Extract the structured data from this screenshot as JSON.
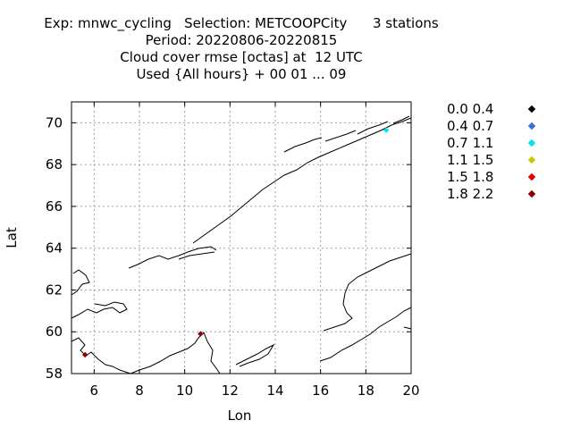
{
  "title": {
    "line1": "Exp: mnwc_cycling   Selection: METCOOPCity      3 stations",
    "line2": "Period: 20220806-20220815",
    "line3": "Cloud cover rmse [octas] at  12 UTC",
    "line4": "Used {All hours} + 00 01 ... 09"
  },
  "axes": {
    "xlabel": "Lon",
    "ylabel": "Lat",
    "xlim": [
      5,
      20
    ],
    "ylim": [
      58,
      71
    ],
    "xticks": [
      "6",
      "8",
      "10",
      "12",
      "14",
      "16",
      "18",
      "20"
    ],
    "yticks": [
      "58",
      "60",
      "62",
      "64",
      "66",
      "68",
      "70"
    ],
    "grid": true
  },
  "legend": [
    {
      "label": "0.0 0.4",
      "color": "#000000"
    },
    {
      "label": "0.4 0.7",
      "color": "#3a6fd8"
    },
    {
      "label": "0.7 1.1",
      "color": "#00e5f0"
    },
    {
      "label": "1.1 1.5",
      "color": "#c8c800"
    },
    {
      "label": "1.5 1.8",
      "color": "#e00000"
    },
    {
      "label": "1.8 2.2",
      "color": "#8b0000"
    }
  ],
  "chart_data": {
    "type": "scatter",
    "points": [
      {
        "lon": 5.6,
        "lat": 58.9,
        "class": "1.8 2.2"
      },
      {
        "lon": 10.7,
        "lat": 59.9,
        "class": "1.8 2.2"
      },
      {
        "lon": 18.9,
        "lat": 69.65,
        "class": "0.7 1.1"
      }
    ]
  }
}
